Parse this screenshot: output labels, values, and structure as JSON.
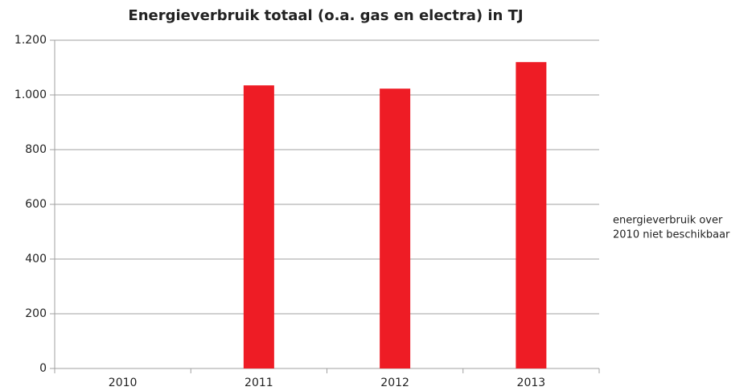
{
  "chart_data": {
    "type": "bar",
    "title": "Energieverbruik totaal (o.a. gas en electra) in TJ",
    "categories": [
      "2010",
      "2011",
      "2012",
      "2013"
    ],
    "values": [
      null,
      1035,
      1023,
      1120
    ],
    "color": "#ee1c25",
    "ylim": [
      0,
      1200
    ],
    "yticks": [
      0,
      200,
      400,
      600,
      800,
      {
        "value": 1000,
        "label": "1.000"
      },
      {
        "value": 1200,
        "label": "1.200"
      }
    ],
    "grid": true,
    "annotation": [
      "energieverbruik over",
      "2010 niet beschikbaar"
    ]
  }
}
